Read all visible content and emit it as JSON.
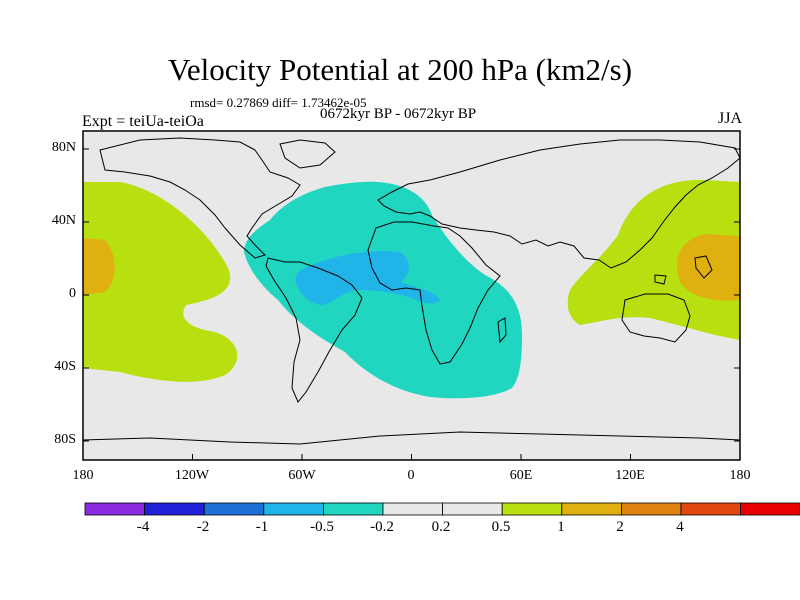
{
  "title": "Velocity Potential at 200 hPa (km2/s)",
  "stats": "rmsd= 0.27869 diff= 1.73462e-05",
  "subtitle": "0672kyr BP - 0672kyr BP",
  "expt": "Expt = teiUa-teiOa",
  "season": "JJA",
  "lat_labels": [
    "80N",
    "40N",
    "0",
    "40S",
    "80S"
  ],
  "lon_labels": [
    "180",
    "120W",
    "60W",
    "0",
    "60E",
    "120E",
    "180"
  ],
  "colorbar": {
    "colors": [
      "#8a2be2",
      "#2020d8",
      "#1c70d8",
      "#20b4e8",
      "#20d6c0",
      "#e8e8e8",
      "#e8e8e8",
      "#b8e010",
      "#e0b010",
      "#e08010",
      "#e04810",
      "#e80000"
    ],
    "labels": [
      "-4",
      "-2",
      "-1",
      "-0.5",
      "-0.2",
      "0.2",
      "0.5",
      "1",
      "2",
      "4"
    ]
  },
  "fill_colors": {
    "background": "#e8e8e8",
    "negative_weak": "#20d6c0",
    "negative_moderate": "#20b4e8",
    "positive_weak": "#b8e010",
    "positive_moderate": "#e0b010"
  }
}
